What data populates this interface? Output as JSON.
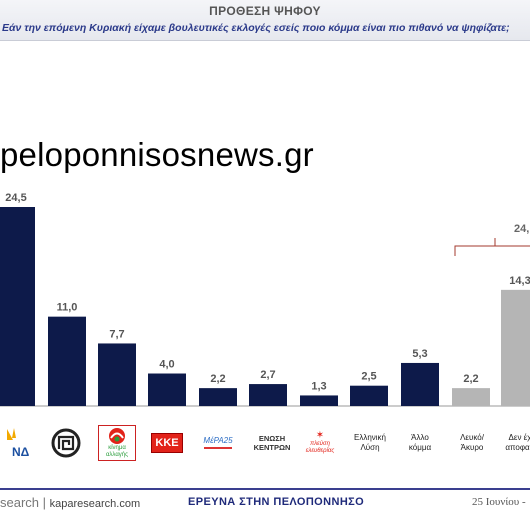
{
  "header": {
    "title": "ΠΡΟΘΕΣΗ ΨΗΦΟΥ",
    "question": "Εάν την επόμενη Κυριακή είχαμε βουλευτικές εκλογές εσείς ποιο κόμμα είναι πιο πιθανό να ψηφίζατε;"
  },
  "watermark": "peloponnisosnews.gr",
  "chart_data": {
    "type": "bar",
    "categories": [
      "ΝΔ",
      "ΧΑ",
      "ΚΙΝΑΛ",
      "ΚΚΕ",
      "ΜέΡΑ25",
      "ΕΝΩΣΗ ΚΕΝΤΡΩΝ",
      "ΠΛΕΥΣΗ ΕΛΕΥΘΕΡΙΑΣ",
      "Ελληνική Λύση",
      "Άλλο κόμμα",
      "Λευκό/ Άκυρο",
      "Δεν έχω αποφασίσει"
    ],
    "values": [
      24.5,
      11.0,
      7.7,
      4.0,
      2.2,
      2.7,
      1.3,
      2.5,
      5.3,
      2.2,
      14.3
    ],
    "labels": [
      "24,5",
      "11,0",
      "7,7",
      "4,0",
      "2,2",
      "2,7",
      "1,3",
      "2,5",
      "5,3",
      "2,2",
      "14,3"
    ],
    "colors": [
      "#0d1a4a",
      "#0d1a4a",
      "#0d1a4a",
      "#0d1a4a",
      "#0d1a4a",
      "#0d1a4a",
      "#0d1a4a",
      "#0d1a4a",
      "#0d1a4a",
      "#b5b5b5",
      "#b5b5b5"
    ],
    "bracket_label": "24,",
    "ylim": [
      0,
      25
    ]
  },
  "logos": {
    "nd": "ΝΔ",
    "kinal": "κίνημα αλλαγής",
    "kke": "ΚΚΕ",
    "mera": "ΜέΡΑ25",
    "enosi": "ΕΝΩΣΗ ΚΕΝΤΡΩΝ",
    "plefsi": "πλεύση ελευθερίας",
    "elliniki_lysi": "Ελληνική Λύση",
    "allo": "Άλλο κόμμα",
    "lefko": "Λευκό/ Άκυρο",
    "den_exo": "Δεν έχ αποφασ"
  },
  "footer": {
    "brand": "search |",
    "site": "kaparesearch.com",
    "center": "ΕΡΕΥΝΑ ΣΤΗΝ ΠΕΛΟΠΟΝΝΗΣΟ",
    "date": "25 Ιουνίου -"
  },
  "colors": {
    "bar": "#0d1a4a",
    "bar_grey": "#b5b5b5",
    "accent": "#a33a2e"
  }
}
